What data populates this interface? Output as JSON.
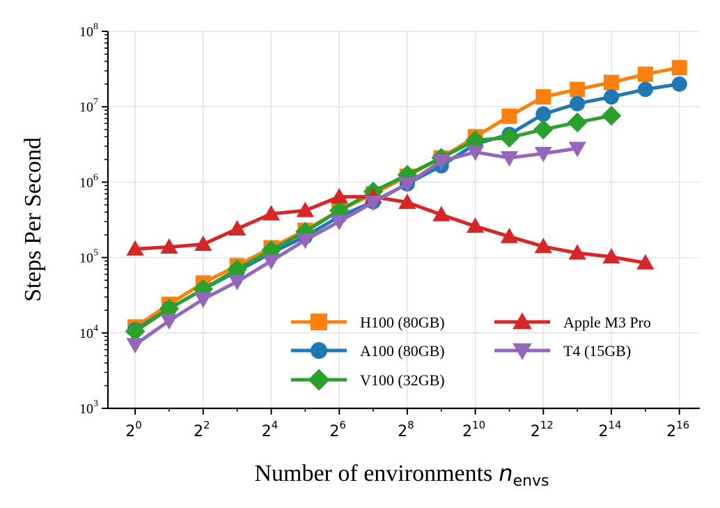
{
  "chart_data": {
    "type": "line",
    "title": "",
    "xlabel": "Number of environments",
    "xlabel_math": "n",
    "xlabel_sub": "envs",
    "ylabel": "Steps Per Second",
    "xscale": "log2",
    "yscale": "log10",
    "xlim_exponent": [
      -0.8,
      16.6
    ],
    "ylim_exponent": [
      3,
      8
    ],
    "x_ticks": [
      {
        "base": "2",
        "exp": "0",
        "value": 0
      },
      {
        "base": "2",
        "exp": "2",
        "value": 2
      },
      {
        "base": "2",
        "exp": "4",
        "value": 4
      },
      {
        "base": "2",
        "exp": "6",
        "value": 6
      },
      {
        "base": "2",
        "exp": "8",
        "value": 8
      },
      {
        "base": "2",
        "exp": "10",
        "value": 10
      },
      {
        "base": "2",
        "exp": "12",
        "value": 12
      },
      {
        "base": "2",
        "exp": "14",
        "value": 14
      },
      {
        "base": "2",
        "exp": "16",
        "value": 16
      }
    ],
    "y_ticks": [
      {
        "base": "10",
        "exp": "3",
        "value": 3
      },
      {
        "base": "10",
        "exp": "4",
        "value": 4
      },
      {
        "base": "10",
        "exp": "5",
        "value": 5
      },
      {
        "base": "10",
        "exp": "6",
        "value": 6
      },
      {
        "base": "10",
        "exp": "7",
        "value": 7
      },
      {
        "base": "10",
        "exp": "8",
        "value": 8
      }
    ],
    "grid": true,
    "legend_position": "lower-right",
    "series": [
      {
        "name": "H100 (80GB)",
        "color": "#ff7f0e",
        "marker": "square",
        "x_exponent": [
          0,
          1,
          2,
          3,
          4,
          5,
          6,
          7,
          8,
          9,
          10,
          11,
          12,
          13,
          14,
          15,
          16
        ],
        "values": [
          12000,
          24000,
          46000,
          78000,
          135000,
          230000,
          420000,
          700000,
          1200000,
          2100000,
          4000000,
          7500000,
          13500000,
          17000000,
          21000000,
          27000000,
          33000000
        ]
      },
      {
        "name": "A100 (80GB)",
        "color": "#1f77b4",
        "marker": "circle",
        "x_exponent": [
          0,
          1,
          2,
          3,
          4,
          5,
          6,
          7,
          8,
          9,
          10,
          11,
          12,
          13,
          14,
          15,
          16
        ],
        "values": [
          11000,
          21000,
          38000,
          66000,
          115000,
          190000,
          350000,
          550000,
          950000,
          1650000,
          3200000,
          4300000,
          8000000,
          11000000,
          13500000,
          17000000,
          20000000
        ]
      },
      {
        "name": "V100 (32GB)",
        "color": "#2ca02c",
        "marker": "diamond",
        "x_exponent": [
          0,
          1,
          2,
          3,
          4,
          5,
          6,
          7,
          8,
          9,
          10,
          11,
          12,
          13,
          14
        ],
        "values": [
          10500,
          21000,
          38000,
          70000,
          125000,
          220000,
          420000,
          750000,
          1250000,
          2100000,
          3600000,
          3900000,
          5000000,
          6200000,
          7600000
        ]
      },
      {
        "name": "Apple M3 Pro",
        "color": "#d62728",
        "marker": "triangle-up",
        "x_exponent": [
          0,
          1,
          2,
          3,
          4,
          5,
          6,
          7,
          8,
          9,
          10,
          11,
          12,
          13,
          14,
          15
        ],
        "values": [
          130000,
          138000,
          150000,
          240000,
          380000,
          420000,
          640000,
          640000,
          540000,
          370000,
          260000,
          190000,
          140000,
          115000,
          102000,
          85000
        ]
      },
      {
        "name": "T4 (15GB)",
        "color": "#9467bd",
        "marker": "triangle-down",
        "x_exponent": [
          0,
          1,
          2,
          3,
          4,
          5,
          6,
          7,
          8,
          9,
          10,
          11,
          12,
          13
        ],
        "values": [
          7000,
          14500,
          28000,
          48000,
          90000,
          170000,
          300000,
          540000,
          950000,
          1900000,
          2500000,
          2100000,
          2400000,
          2800000
        ]
      }
    ]
  }
}
